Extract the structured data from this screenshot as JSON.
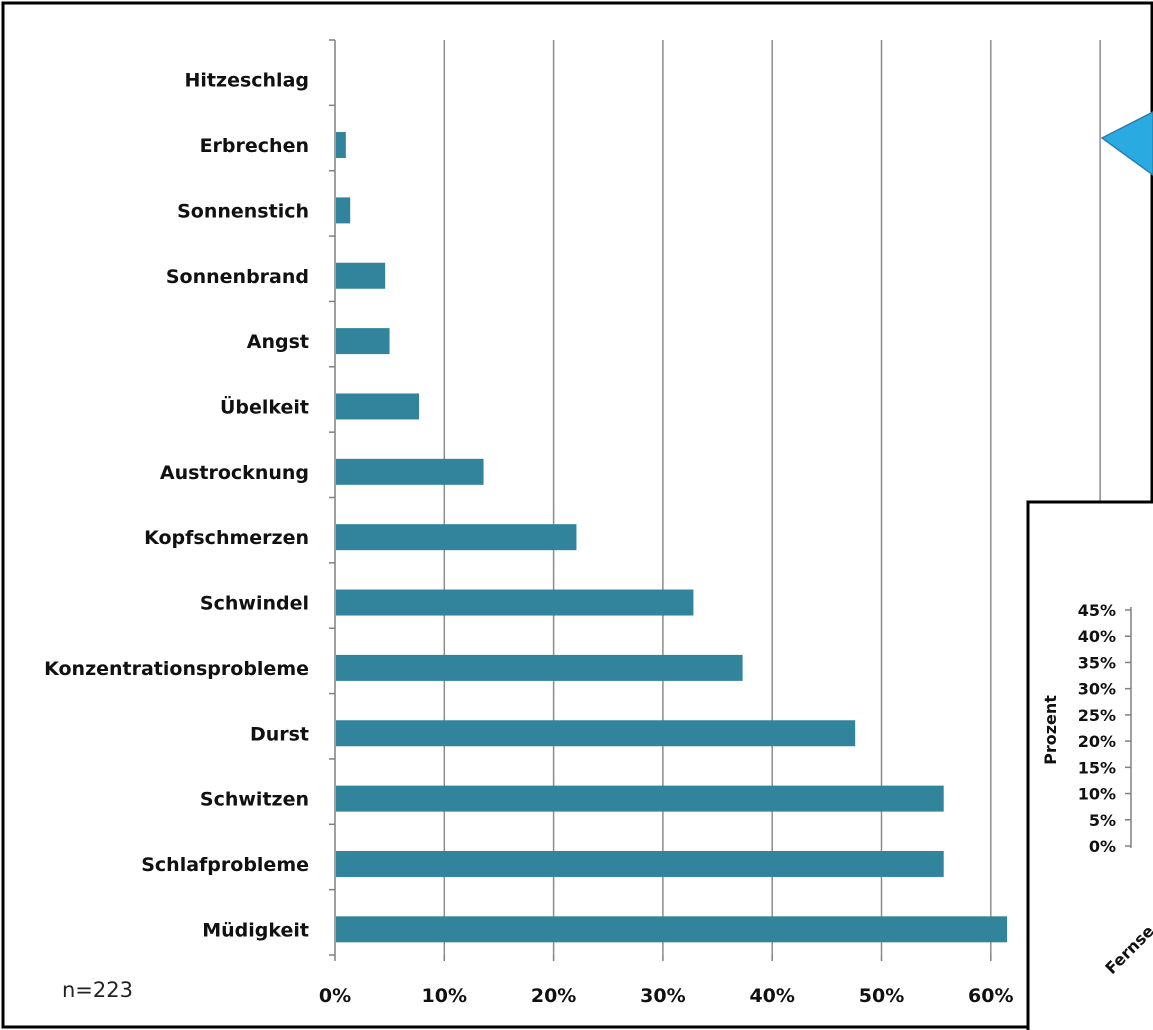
{
  "chart_data": [
    {
      "type": "bar",
      "orientation": "horizontal",
      "categories": [
        "Hitzeschlag",
        "Erbrechen",
        "Sonnenstich",
        "Sonnenbrand",
        "Angst",
        "Übelkeit",
        "Austrocknung",
        "Kopfschmerzen",
        "Schwindel",
        "Konzentrationsprobleme",
        "Durst",
        "Schwitzen",
        "Schlafprobleme",
        "Müdigkeit"
      ],
      "values": [
        0,
        0.9,
        1.3,
        4.5,
        4.9,
        7.6,
        13.5,
        22.0,
        32.7,
        37.2,
        47.5,
        55.6,
        55.6,
        61.4
      ],
      "xlim": [
        0,
        70
      ],
      "x_ticks": [
        "0%",
        "10%",
        "20%",
        "30%",
        "40%",
        "50%",
        "60%"
      ],
      "grid": true,
      "bar_color": "#31849B",
      "annotation": "n=223"
    },
    {
      "type": "bar",
      "partial": true,
      "ylabel": "Prozent",
      "y_ticks": [
        "45%",
        "40%",
        "35%",
        "30%",
        "25%",
        "20%",
        "15%",
        "10%",
        "5%",
        "0%"
      ],
      "ylim": [
        0,
        45
      ],
      "visible_category": "Fernse"
    }
  ],
  "callout_color": "#29ABE2"
}
